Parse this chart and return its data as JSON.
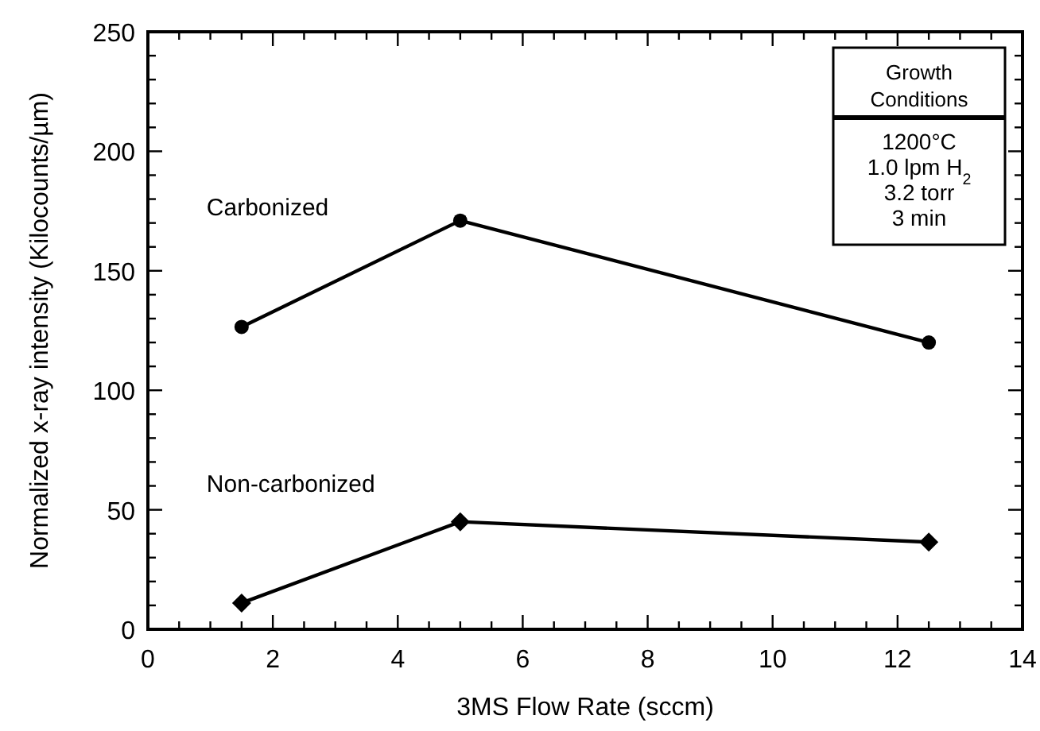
{
  "chart_data": {
    "type": "line",
    "xlabel": "3MS Flow Rate (sccm)",
    "ylabel": "Normalized x-ray intensity (Kilocounts/µm)",
    "x": [
      1.5,
      5,
      12.5
    ],
    "series": [
      {
        "name": "Carbonized",
        "color": "#000000",
        "values": [
          126.5,
          171,
          120
        ],
        "marker": "circle"
      },
      {
        "name": "Non-carbonized",
        "color": "#000000",
        "values": [
          11,
          45,
          36.5
        ],
        "marker": "diamond"
      }
    ],
    "xlim": [
      0,
      14
    ],
    "xticks": [
      0,
      2,
      4,
      6,
      8,
      10,
      12,
      14
    ],
    "ylim": [
      0,
      250
    ],
    "yticks": [
      0,
      50,
      100,
      150,
      200,
      250
    ],
    "line_style": "solid",
    "grid": false,
    "annotations": [
      "Growth Conditions",
      "1200°C",
      "1.0 lpm H$_{2}$",
      "3.2 torr",
      "3 min"
    ]
  }
}
